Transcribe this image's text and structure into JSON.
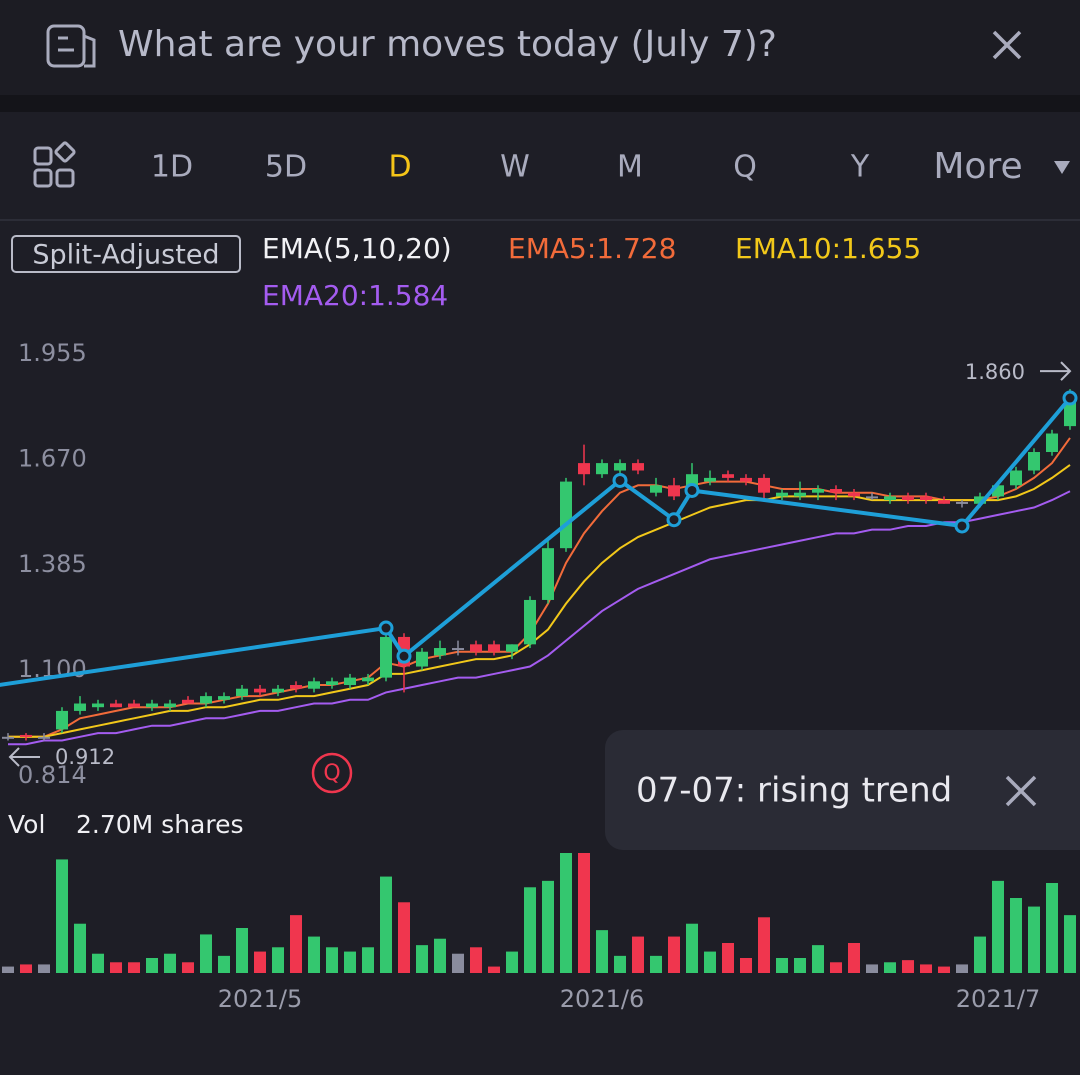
{
  "header": {
    "title": "What are your moves today (July 7)?"
  },
  "tabs": {
    "items": [
      "1D",
      "5D",
      "D",
      "W",
      "M",
      "Q",
      "Y",
      "More"
    ],
    "active": 2
  },
  "legend": {
    "badge": "Split-Adjusted",
    "indicator": "EMA(5,10,20)"
  },
  "chart_data": {
    "type": "candlestick",
    "ylim": [
      0.814,
      1.955
    ],
    "yticks": [
      1.955,
      {
        "value": 1.67,
        "label": "1.670"
      },
      1.385,
      {
        "value": 1.1,
        "label": "1.100"
      },
      0.814
    ],
    "up_color": "#34c76f",
    "down_color": "#f0364e",
    "flat_color": "#8a8c9e",
    "candles": [
      [
        0.92,
        0.93,
        0.91,
        0.92
      ],
      [
        0.925,
        0.93,
        0.91,
        0.92
      ],
      [
        0.92,
        0.93,
        0.91,
        0.92
      ],
      [
        0.94,
        1.0,
        0.93,
        0.99
      ],
      [
        0.99,
        1.03,
        0.98,
        1.01
      ],
      [
        1.0,
        1.02,
        0.99,
        1.01
      ],
      [
        1.01,
        1.02,
        1.0,
        1.0
      ],
      [
        1.01,
        1.02,
        1.0,
        1.0
      ],
      [
        1.0,
        1.02,
        0.99,
        1.01
      ],
      [
        1.0,
        1.02,
        0.99,
        1.01
      ],
      [
        1.02,
        1.03,
        1.01,
        1.01
      ],
      [
        1.01,
        1.04,
        1.0,
        1.03
      ],
      [
        1.02,
        1.04,
        1.01,
        1.03
      ],
      [
        1.03,
        1.06,
        1.02,
        1.05
      ],
      [
        1.05,
        1.06,
        1.03,
        1.04
      ],
      [
        1.04,
        1.06,
        1.03,
        1.05
      ],
      [
        1.06,
        1.07,
        1.04,
        1.05
      ],
      [
        1.05,
        1.08,
        1.04,
        1.07
      ],
      [
        1.06,
        1.08,
        1.05,
        1.07
      ],
      [
        1.06,
        1.09,
        1.05,
        1.08
      ],
      [
        1.07,
        1.09,
        1.06,
        1.08
      ],
      [
        1.08,
        1.21,
        1.07,
        1.19
      ],
      [
        1.19,
        1.2,
        1.04,
        1.11
      ],
      [
        1.11,
        1.16,
        1.1,
        1.15
      ],
      [
        1.14,
        1.18,
        1.13,
        1.16
      ],
      [
        1.16,
        1.18,
        1.14,
        1.16
      ],
      [
        1.17,
        1.18,
        1.14,
        1.15
      ],
      [
        1.17,
        1.18,
        1.14,
        1.15
      ],
      [
        1.15,
        1.17,
        1.13,
        1.17
      ],
      [
        1.17,
        1.3,
        1.16,
        1.29
      ],
      [
        1.29,
        1.45,
        1.28,
        1.43
      ],
      [
        1.43,
        1.62,
        1.42,
        1.61
      ],
      [
        1.66,
        1.71,
        1.6,
        1.63
      ],
      [
        1.63,
        1.67,
        1.62,
        1.66
      ],
      [
        1.64,
        1.67,
        1.63,
        1.66
      ],
      [
        1.66,
        1.67,
        1.63,
        1.64
      ],
      [
        1.58,
        1.62,
        1.57,
        1.6
      ],
      [
        1.6,
        1.62,
        1.56,
        1.57
      ],
      [
        1.58,
        1.66,
        1.57,
        1.63
      ],
      [
        1.61,
        1.64,
        1.6,
        1.62
      ],
      [
        1.63,
        1.64,
        1.61,
        1.62
      ],
      [
        1.62,
        1.63,
        1.6,
        1.61
      ],
      [
        1.62,
        1.63,
        1.56,
        1.58
      ],
      [
        1.57,
        1.59,
        1.56,
        1.58
      ],
      [
        1.57,
        1.61,
        1.56,
        1.58
      ],
      [
        1.58,
        1.6,
        1.56,
        1.59
      ],
      [
        1.59,
        1.6,
        1.56,
        1.58
      ],
      [
        1.58,
        1.59,
        1.56,
        1.57
      ],
      [
        1.57,
        1.58,
        1.56,
        1.57
      ],
      [
        1.56,
        1.58,
        1.55,
        1.57
      ],
      [
        1.57,
        1.58,
        1.55,
        1.56
      ],
      [
        1.57,
        1.58,
        1.55,
        1.56
      ],
      [
        1.56,
        1.57,
        1.55,
        1.55
      ],
      [
        1.555,
        1.56,
        1.54,
        1.555
      ],
      [
        1.55,
        1.58,
        1.54,
        1.57
      ],
      [
        1.57,
        1.61,
        1.56,
        1.6
      ],
      [
        1.6,
        1.65,
        1.59,
        1.64
      ],
      [
        1.64,
        1.7,
        1.63,
        1.69
      ],
      [
        1.69,
        1.75,
        1.68,
        1.74
      ],
      [
        1.76,
        1.86,
        1.75,
        1.83
      ]
    ],
    "ema": [
      {
        "label": "EMA5:1.728",
        "color": "#f26b3a",
        "values": [
          0.92,
          0.92,
          0.92,
          0.94,
          0.97,
          0.98,
          0.99,
          1.0,
          1.0,
          1.0,
          1.01,
          1.01,
          1.02,
          1.03,
          1.03,
          1.04,
          1.05,
          1.06,
          1.06,
          1.07,
          1.08,
          1.12,
          1.11,
          1.13,
          1.14,
          1.15,
          1.15,
          1.15,
          1.15,
          1.2,
          1.28,
          1.39,
          1.47,
          1.53,
          1.58,
          1.6,
          1.6,
          1.59,
          1.6,
          1.61,
          1.61,
          1.61,
          1.6,
          1.59,
          1.59,
          1.59,
          1.58,
          1.58,
          1.58,
          1.57,
          1.57,
          1.57,
          1.56,
          1.56,
          1.56,
          1.57,
          1.59,
          1.62,
          1.66,
          1.728
        ]
      },
      {
        "label": "EMA10:1.655",
        "color": "#f2c81a",
        "values": [
          0.92,
          0.92,
          0.92,
          0.93,
          0.94,
          0.95,
          0.96,
          0.97,
          0.98,
          0.99,
          0.99,
          1.0,
          1.0,
          1.01,
          1.02,
          1.02,
          1.03,
          1.03,
          1.04,
          1.05,
          1.06,
          1.09,
          1.09,
          1.1,
          1.11,
          1.12,
          1.13,
          1.13,
          1.14,
          1.17,
          1.21,
          1.28,
          1.34,
          1.39,
          1.43,
          1.46,
          1.48,
          1.5,
          1.52,
          1.54,
          1.55,
          1.56,
          1.56,
          1.57,
          1.57,
          1.57,
          1.57,
          1.57,
          1.56,
          1.56,
          1.56,
          1.56,
          1.56,
          1.56,
          1.56,
          1.56,
          1.57,
          1.59,
          1.62,
          1.655
        ]
      },
      {
        "label": "EMA20:1.584",
        "color": "#a45cf0",
        "values": [
          0.9,
          0.9,
          0.91,
          0.91,
          0.92,
          0.93,
          0.93,
          0.94,
          0.95,
          0.95,
          0.96,
          0.97,
          0.97,
          0.98,
          0.99,
          0.99,
          1.0,
          1.01,
          1.01,
          1.02,
          1.02,
          1.04,
          1.05,
          1.06,
          1.07,
          1.08,
          1.08,
          1.09,
          1.1,
          1.11,
          1.14,
          1.18,
          1.22,
          1.26,
          1.29,
          1.32,
          1.34,
          1.36,
          1.38,
          1.4,
          1.41,
          1.42,
          1.43,
          1.44,
          1.45,
          1.46,
          1.47,
          1.47,
          1.48,
          1.48,
          1.49,
          1.49,
          1.5,
          1.5,
          1.51,
          1.52,
          1.53,
          1.54,
          1.56,
          1.584
        ]
      }
    ],
    "trend": {
      "color": "#1e9fd8",
      "points": [
        [
          -0.5,
          1.06
        ],
        [
          21,
          1.214
        ],
        [
          22,
          1.138
        ],
        [
          34,
          1.613
        ],
        [
          37,
          1.507
        ],
        [
          38,
          1.586
        ],
        [
          53,
          1.49
        ],
        [
          59,
          1.836
        ]
      ]
    },
    "high_marker": {
      "value": 1.86,
      "label": "1.860"
    },
    "low_marker": {
      "value": 0.912,
      "label": "0.912"
    },
    "xticks": [
      {
        "value": 14,
        "label": "2021/5"
      },
      {
        "value": 33,
        "label": "2021/6"
      },
      {
        "value": 55,
        "label": "2021/7"
      }
    ],
    "event": {
      "index": 18,
      "label": "Q"
    },
    "volume": {
      "label": "Vol",
      "value_label": "2.70M shares",
      "ylim": [
        0,
        5.6
      ],
      "values": [
        0.3,
        0.4,
        0.4,
        5.3,
        2.3,
        0.9,
        0.5,
        0.5,
        0.7,
        0.9,
        0.5,
        1.8,
        0.8,
        2.1,
        1.0,
        1.2,
        2.7,
        1.7,
        1.2,
        1.0,
        1.2,
        4.5,
        3.3,
        1.3,
        1.6,
        0.9,
        1.2,
        0.3,
        1.0,
        4.0,
        4.3,
        5.6,
        5.6,
        2.0,
        0.8,
        1.7,
        0.8,
        1.7,
        2.3,
        1.0,
        1.4,
        0.7,
        2.6,
        0.7,
        0.7,
        1.3,
        0.5,
        1.4,
        0.4,
        0.5,
        0.6,
        0.4,
        0.3,
        0.4,
        1.7,
        4.3,
        3.5,
        3.1,
        4.2,
        2.7
      ]
    }
  },
  "toast": {
    "text": "07-07: rising trend"
  }
}
